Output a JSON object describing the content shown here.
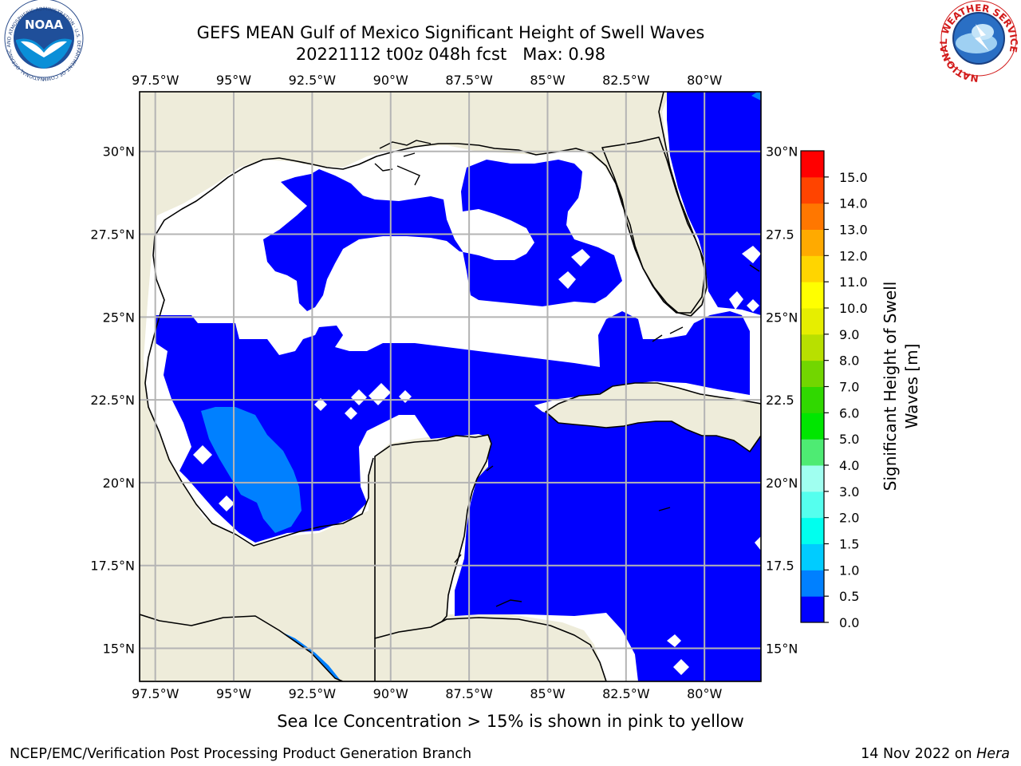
{
  "title": {
    "line1": "GEFS MEAN Gulf of Mexico Significant Height of Swell Waves",
    "line2": "20221112 t00z 048h fcst   Max: 0.98"
  },
  "map": {
    "lon_range": [
      -98.0,
      -78.2
    ],
    "lat_range": [
      14.0,
      31.8
    ],
    "lon_ticks": [
      "97.5°W",
      "95°W",
      "92.5°W",
      "90°W",
      "87.5°W",
      "85°W",
      "82.5°W",
      "80°W"
    ],
    "lat_ticks": [
      "30°N",
      "27.5°N",
      "25°N",
      "22.5°N",
      "20°N",
      "17.5°N",
      "15°N"
    ],
    "right_lat_ticks": [
      "30°N",
      "27.5",
      "25°N",
      "22.5",
      "20°N",
      "17.5",
      "15°N"
    ],
    "colors": {
      "land": "#eeecda",
      "no_data": "#ffffff",
      "swell_0_0_5": "#0000ff",
      "swell_0_5_1_0": "#0080ff",
      "grid": "#b4b4b4"
    }
  },
  "colorbar": {
    "label": "Significant Height of Swell Waves [m]",
    "tick_labels": [
      "0.0",
      "0.5",
      "1.0",
      "1.5",
      "2.0",
      "3.0",
      "4.0",
      "5.0",
      "6.0",
      "7.0",
      "8.0",
      "9.0",
      "10.0",
      "11.0",
      "12.0",
      "13.0",
      "14.0",
      "15.0"
    ],
    "band_colors": [
      "#0000ff",
      "#0080ff",
      "#00ccff",
      "#00ffee",
      "#55ffee",
      "#a0fff0",
      "#4eeb73",
      "#00e600",
      "#30d800",
      "#72d600",
      "#b8e000",
      "#e6ee00",
      "#ffff00",
      "#ffd500",
      "#ffaa00",
      "#ff7700",
      "#ff4400",
      "#ff0000"
    ]
  },
  "sea_ice_note": "Sea Ice Concentration > 15% is shown in pink to yellow",
  "footer": {
    "left": "NCEP/EMC/Verification Post Processing Product Generation Branch",
    "date": "14 Nov 2022 on ",
    "machine": "Hera"
  },
  "logos": {
    "noaa": {
      "text": "NOAA",
      "ring": "NATIONAL OCEANIC AND ATMOSPHERIC ADMINISTRATION · U.S. DEPARTMENT OF COMMERCE"
    },
    "nws": {
      "ring": "NATIONAL WEATHER SERVICE"
    }
  }
}
